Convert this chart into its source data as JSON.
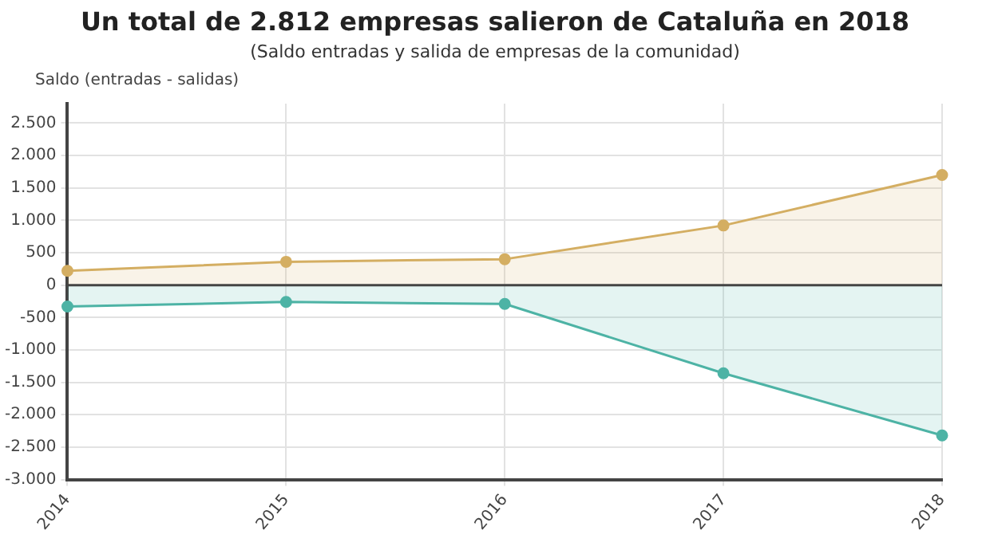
{
  "chart_data": {
    "type": "area",
    "title": "Un total de 2.812 empresas salieron de Cataluña en 2018",
    "subtitle": "(Saldo entradas y salida de empresas de la comunidad)",
    "ylabel": "Saldo (entradas - salidas)",
    "categories": [
      "2014",
      "2015",
      "2016",
      "2017",
      "2018"
    ],
    "series": [
      {
        "color": "#d4ae62",
        "values": [
          220,
          360,
          400,
          920,
          1700
        ]
      },
      {
        "color": "#4db3a5",
        "values": [
          -330,
          -260,
          -290,
          -1360,
          -2320
        ]
      }
    ],
    "ylim": [
      -3000,
      2800
    ],
    "yticks": [
      {
        "value": -3000,
        "label": "-3.000"
      },
      {
        "value": -2500,
        "label": "-2.500"
      },
      {
        "value": -2000,
        "label": "-2.000"
      },
      {
        "value": -1500,
        "label": "-1.500"
      },
      {
        "value": -1000,
        "label": "-1.000"
      },
      {
        "value": -500,
        "label": "-500"
      },
      0,
      500,
      {
        "value": 1000,
        "label": "1.000"
      },
      {
        "value": 1500,
        "label": "1.500"
      },
      {
        "value": 2000,
        "label": "2.000"
      },
      {
        "value": 2500,
        "label": "2.500"
      }
    ],
    "ref_lines": [
      {
        "axis": "y",
        "value": 0,
        "color": "#444444"
      }
    ],
    "grid": true,
    "legend": false,
    "marker": "circle",
    "line_style": "solid"
  }
}
